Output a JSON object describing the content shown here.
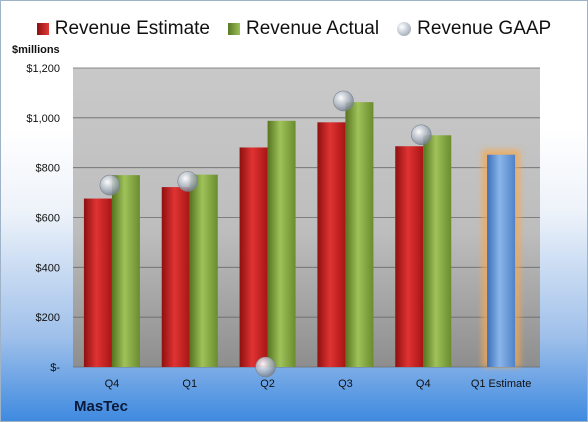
{
  "legend": {
    "estimate_label": "Revenue Estimate",
    "actual_label": "Revenue Actual",
    "gaap_label": "Revenue GAAP"
  },
  "brand": "MasTec",
  "colors": {
    "estimate": "#c8201f",
    "actual": "#7fa33f",
    "gaap": "#b8c0cb",
    "forecast": "#6f9fdc",
    "forecast_glow": "#f4a950"
  },
  "chart_data": {
    "type": "bar",
    "ylabel": "$millions",
    "ylim": [
      0,
      1200
    ],
    "yticks": [
      {
        "value": 0,
        "label": "$-"
      },
      {
        "value": 200,
        "label": "$200"
      },
      {
        "value": 400,
        "label": "$400"
      },
      {
        "value": 600,
        "label": "$600"
      },
      {
        "value": 800,
        "label": "$800"
      },
      {
        "value": 1000,
        "label": "$1,000"
      },
      {
        "value": 1200,
        "label": "$1,200"
      }
    ],
    "categories": [
      "Q4",
      "Q1",
      "Q2",
      "Q3",
      "Q4",
      "Q1 Estimate"
    ],
    "series": [
      {
        "name": "Revenue Estimate",
        "values": [
          676,
          722,
          881,
          982,
          886,
          null
        ]
      },
      {
        "name": "Revenue Actual",
        "values": [
          770,
          772,
          988,
          1063,
          930,
          null
        ]
      },
      {
        "name": "Revenue GAAP",
        "values": [
          730,
          745,
          0,
          1068,
          932,
          null
        ]
      }
    ],
    "forecast": {
      "category": "Q1 Estimate",
      "value": 852
    },
    "grid": true,
    "legend_position": "top"
  }
}
